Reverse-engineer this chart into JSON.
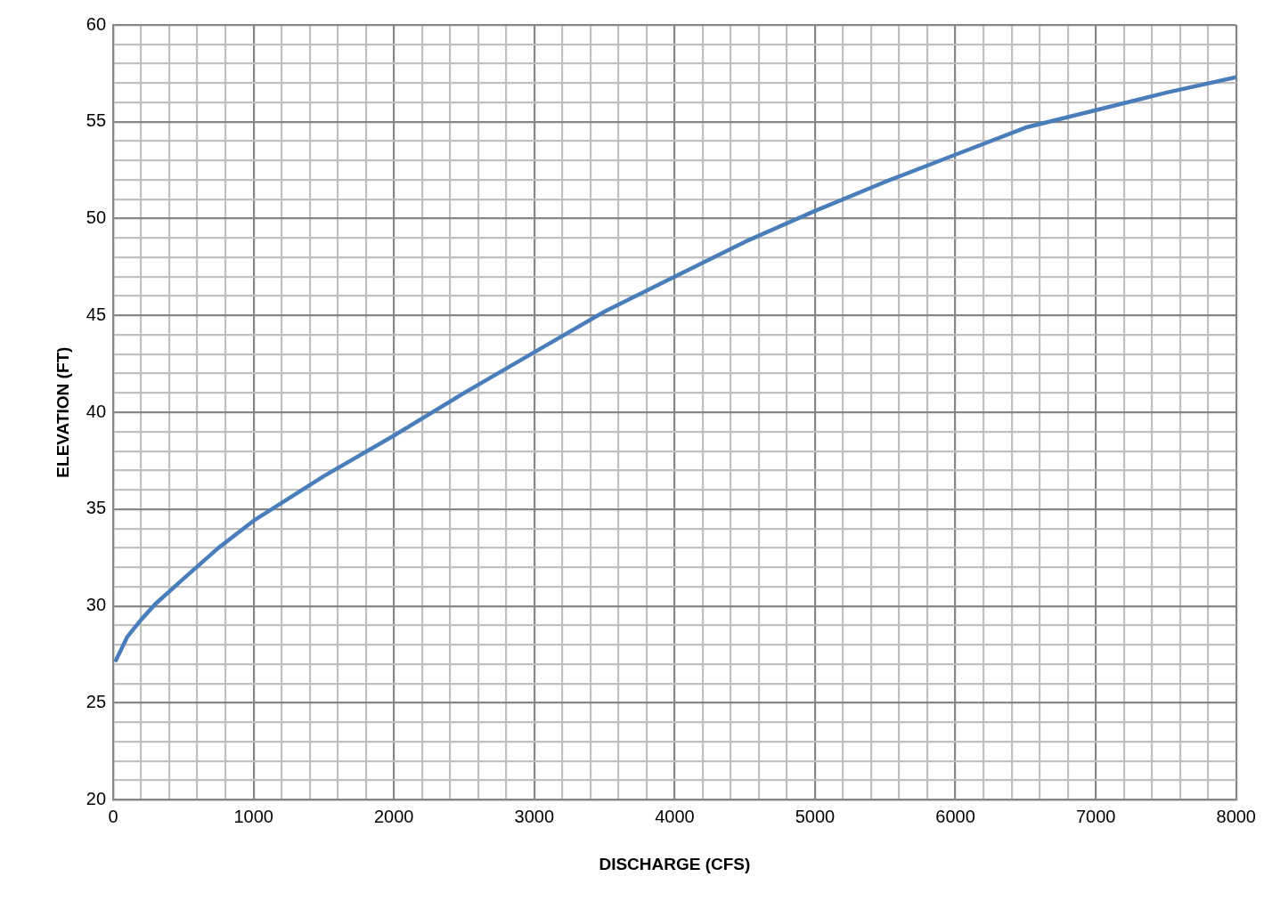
{
  "chart_data": {
    "type": "line",
    "xlabel": "DISCHARGE (CFS)",
    "ylabel": "ELEVATION (FT)",
    "x": [
      20,
      100,
      200,
      300,
      500,
      750,
      1000,
      1500,
      2000,
      2500,
      3000,
      3500,
      4000,
      4500,
      5000,
      5500,
      6000,
      6500,
      7000,
      7500,
      8000
    ],
    "series": [
      {
        "color": "#4a7ebb",
        "values": [
          27.2,
          28.4,
          29.3,
          30.1,
          31.4,
          33.0,
          34.4,
          36.7,
          38.8,
          41.0,
          43.1,
          45.2,
          47.0,
          48.8,
          50.4,
          51.9,
          53.3,
          54.7,
          55.6,
          56.5,
          57.3
        ]
      }
    ],
    "xlim": [
      0,
      8000
    ],
    "ylim": [
      20,
      60
    ],
    "xticks": [
      0,
      {
        "value": 200,
        "label": null
      },
      {
        "value": 400,
        "label": null
      },
      {
        "value": 600,
        "label": null
      },
      {
        "value": 800,
        "label": null
      },
      1000,
      {
        "value": 1200,
        "label": null
      },
      {
        "value": 1400,
        "label": null
      },
      {
        "value": 1600,
        "label": null
      },
      {
        "value": 1800,
        "label": null
      },
      2000,
      {
        "value": 2200,
        "label": null
      },
      {
        "value": 2400,
        "label": null
      },
      {
        "value": 2600,
        "label": null
      },
      {
        "value": 2800,
        "label": null
      },
      3000,
      {
        "value": 3200,
        "label": null
      },
      {
        "value": 3400,
        "label": null
      },
      {
        "value": 3600,
        "label": null
      },
      {
        "value": 3800,
        "label": null
      },
      4000,
      {
        "value": 4200,
        "label": null
      },
      {
        "value": 4400,
        "label": null
      },
      {
        "value": 4600,
        "label": null
      },
      {
        "value": 4800,
        "label": null
      },
      5000,
      {
        "value": 5200,
        "label": null
      },
      {
        "value": 5400,
        "label": null
      },
      {
        "value": 5600,
        "label": null
      },
      {
        "value": 5800,
        "label": null
      },
      6000,
      {
        "value": 6200,
        "label": null
      },
      {
        "value": 6400,
        "label": null
      },
      {
        "value": 6600,
        "label": null
      },
      {
        "value": 6800,
        "label": null
      },
      7000,
      {
        "value": 7200,
        "label": null
      },
      {
        "value": 7400,
        "label": null
      },
      {
        "value": 7600,
        "label": null
      },
      {
        "value": 7800,
        "label": null
      },
      8000
    ],
    "yticks": [
      20,
      {
        "value": 21,
        "label": null
      },
      {
        "value": 22,
        "label": null
      },
      {
        "value": 23,
        "label": null
      },
      {
        "value": 24,
        "label": null
      },
      25,
      {
        "value": 26,
        "label": null
      },
      {
        "value": 27,
        "label": null
      },
      {
        "value": 28,
        "label": null
      },
      {
        "value": 29,
        "label": null
      },
      30,
      {
        "value": 31,
        "label": null
      },
      {
        "value": 32,
        "label": null
      },
      {
        "value": 33,
        "label": null
      },
      {
        "value": 34,
        "label": null
      },
      35,
      {
        "value": 36,
        "label": null
      },
      {
        "value": 37,
        "label": null
      },
      {
        "value": 38,
        "label": null
      },
      {
        "value": 39,
        "label": null
      },
      40,
      {
        "value": 41,
        "label": null
      },
      {
        "value": 42,
        "label": null
      },
      {
        "value": 43,
        "label": null
      },
      {
        "value": 44,
        "label": null
      },
      45,
      {
        "value": 46,
        "label": null
      },
      {
        "value": 47,
        "label": null
      },
      {
        "value": 48,
        "label": null
      },
      {
        "value": 49,
        "label": null
      },
      50,
      {
        "value": 51,
        "label": null
      },
      {
        "value": 52,
        "label": null
      },
      {
        "value": 53,
        "label": null
      },
      {
        "value": 54,
        "label": null
      },
      55,
      {
        "value": 56,
        "label": null
      },
      {
        "value": 57,
        "label": null
      },
      {
        "value": 58,
        "label": null
      },
      {
        "value": 59,
        "label": null
      },
      60
    ],
    "grid": true,
    "legend": false,
    "marker": "none",
    "line_style": "solid"
  }
}
